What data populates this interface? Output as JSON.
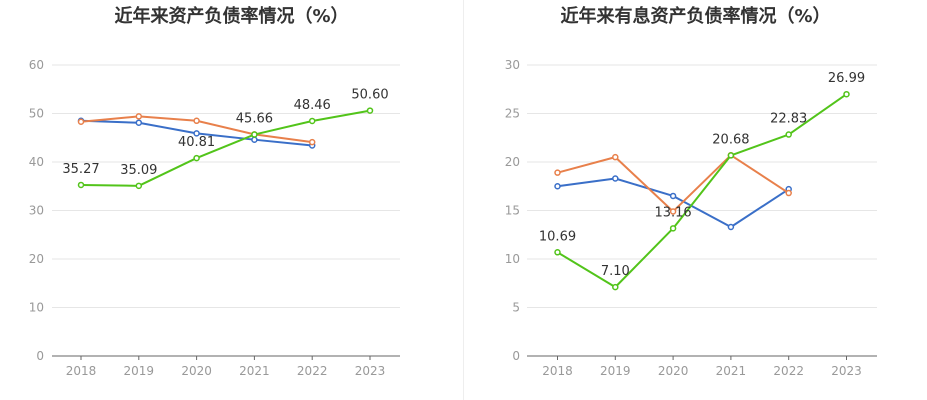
{
  "chart_data": [
    {
      "type": "line",
      "title": "近年来资产负债率情况（%）",
      "categories": [
        "2018",
        "2019",
        "2020",
        "2021",
        "2022",
        "2023"
      ],
      "ylim": [
        0,
        60
      ],
      "yticks": [
        0,
        10,
        20,
        30,
        40,
        50,
        60
      ],
      "grid": true,
      "series": [
        {
          "color": "#3a6fc8",
          "values": [
            48.5,
            48.1,
            45.9,
            44.6,
            43.4,
            null
          ],
          "labels": false
        },
        {
          "color": "#e8804b",
          "values": [
            48.3,
            49.4,
            48.5,
            45.7,
            44.1,
            null
          ],
          "labels": false
        },
        {
          "color": "#52c41a",
          "values": [
            35.27,
            35.09,
            40.81,
            45.66,
            48.46,
            50.6
          ],
          "labels": true,
          "data_labels": [
            "35.27",
            "35.09",
            "40.81",
            "45.66",
            "48.46",
            "50.60"
          ]
        }
      ]
    },
    {
      "type": "line",
      "title": "近年来有息资产负债率情况（%）",
      "categories": [
        "2018",
        "2019",
        "2020",
        "2021",
        "2022",
        "2023"
      ],
      "ylim": [
        0,
        30
      ],
      "yticks": [
        0,
        5,
        10,
        15,
        20,
        25,
        30
      ],
      "grid": true,
      "series": [
        {
          "color": "#3a6fc8",
          "values": [
            17.5,
            18.3,
            16.5,
            13.3,
            17.2,
            null
          ],
          "labels": false
        },
        {
          "color": "#e8804b",
          "values": [
            18.9,
            20.5,
            14.9,
            20.7,
            16.8,
            null
          ],
          "labels": false
        },
        {
          "color": "#52c41a",
          "values": [
            10.69,
            7.1,
            13.16,
            20.68,
            22.83,
            26.99
          ],
          "labels": true,
          "data_labels": [
            "10.69",
            "7.10",
            "13.16",
            "20.68",
            "22.83",
            "26.99"
          ]
        }
      ]
    }
  ]
}
